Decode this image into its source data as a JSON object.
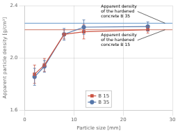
{
  "chart_data": {
    "type": "line",
    "xlabel": "Particle size [mm]",
    "ylabel": "Apparent particle density [g/cm³]",
    "xlim": [
      0,
      30
    ],
    "ylim": [
      1.6,
      2.4
    ],
    "xticks": [
      0,
      10,
      20,
      30
    ],
    "yticks": [
      1.6,
      {
        "value": 2.0,
        "label": "2.0"
      },
      2.4
    ],
    "grid": true,
    "legend": "lower center",
    "x": [
      2,
      4,
      8,
      12,
      25
    ],
    "series": [
      {
        "name": "B 15",
        "color": "#cc5544",
        "marker": "square",
        "values": [
          1.875,
          1.945,
          2.18,
          2.2,
          2.215
        ],
        "errors": [
          0.07,
          0.05,
          0.035,
          0.055,
          0.025
        ]
      },
      {
        "name": "B 35",
        "color": "#5577aa",
        "marker": "circle",
        "values": [
          1.855,
          1.935,
          2.18,
          2.235,
          2.24
        ],
        "errors": [
          0.065,
          0.045,
          0.045,
          0.055,
          0.035
        ]
      }
    ],
    "hlines": [
      {
        "y": 2.265,
        "color": "#6699cc"
      },
      {
        "y": 2.215,
        "color": "#cc7766"
      }
    ],
    "annotations": [
      {
        "text": "Apparent density\nof the hardened\nconcrete B 35",
        "x": 15.5,
        "y": 2.355,
        "point_x": 28.5,
        "point_y": 2.265
      },
      {
        "text": "Apparent density\nof the hardened\nconcrete B 15",
        "x": 15.5,
        "y": 2.135,
        "point_x": 28.5,
        "point_y": 2.215
      }
    ]
  }
}
